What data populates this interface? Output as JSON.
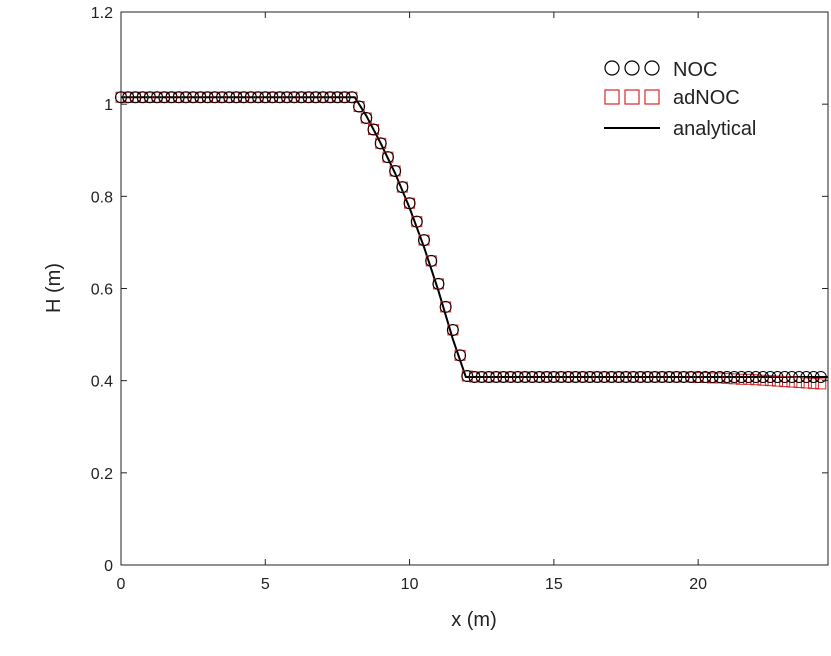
{
  "chart_data": {
    "type": "scatter",
    "xlabel": "x (m)",
    "ylabel": "H (m)",
    "xlim": [
      0,
      24.5
    ],
    "ylim": [
      0,
      1.2
    ],
    "xticks": [
      0,
      5,
      10,
      15,
      20
    ],
    "xtick_labels": [
      "0",
      "5",
      "10",
      "15",
      "20"
    ],
    "yticks": [
      0,
      0.2,
      0.4,
      0.6,
      0.8,
      1.0,
      1.2
    ],
    "ytick_labels": [
      "0",
      "0.2",
      "0.4",
      "0.6",
      "0.8",
      "1",
      "1.2"
    ],
    "grid": false,
    "legend_position": "top-right",
    "series": [
      {
        "name": "NOC",
        "marker": "circle",
        "color": "#000000",
        "x": [
          0,
          0.25,
          0.5,
          0.75,
          1,
          1.25,
          1.5,
          1.75,
          2,
          2.25,
          2.5,
          2.75,
          3,
          3.25,
          3.5,
          3.75,
          4,
          4.25,
          4.5,
          4.75,
          5,
          5.25,
          5.5,
          5.75,
          6,
          6.25,
          6.5,
          6.75,
          7,
          7.25,
          7.5,
          7.75,
          8,
          8.25,
          8.5,
          8.75,
          9,
          9.25,
          9.5,
          9.75,
          10,
          10.25,
          10.5,
          10.75,
          11,
          11.25,
          11.5,
          11.75,
          12,
          12.25,
          12.5,
          12.75,
          13,
          13.25,
          13.5,
          13.75,
          14,
          14.25,
          14.5,
          14.75,
          15,
          15.25,
          15.5,
          15.75,
          16,
          16.25,
          16.5,
          16.75,
          17,
          17.25,
          17.5,
          17.75,
          18,
          18.25,
          18.5,
          18.75,
          19,
          19.25,
          19.5,
          19.75,
          20,
          20.25,
          20.5,
          20.75,
          21,
          21.25,
          21.5,
          21.75,
          22,
          22.25,
          22.5,
          22.75,
          23,
          23.25,
          23.5,
          23.75,
          24,
          24.25
        ],
        "y": [
          1.015,
          1.015,
          1.015,
          1.015,
          1.015,
          1.015,
          1.015,
          1.015,
          1.015,
          1.015,
          1.015,
          1.015,
          1.015,
          1.015,
          1.015,
          1.015,
          1.015,
          1.015,
          1.015,
          1.015,
          1.015,
          1.015,
          1.015,
          1.015,
          1.015,
          1.015,
          1.015,
          1.015,
          1.015,
          1.015,
          1.015,
          1.015,
          1.015,
          0.995,
          0.97,
          0.945,
          0.915,
          0.885,
          0.855,
          0.82,
          0.785,
          0.745,
          0.705,
          0.66,
          0.61,
          0.56,
          0.51,
          0.455,
          0.41,
          0.408,
          0.408,
          0.408,
          0.408,
          0.408,
          0.408,
          0.408,
          0.408,
          0.408,
          0.408,
          0.408,
          0.408,
          0.408,
          0.408,
          0.408,
          0.408,
          0.408,
          0.408,
          0.408,
          0.408,
          0.408,
          0.408,
          0.408,
          0.408,
          0.408,
          0.408,
          0.408,
          0.408,
          0.408,
          0.408,
          0.408,
          0.408,
          0.408,
          0.408,
          0.408,
          0.408,
          0.408,
          0.408,
          0.408,
          0.408,
          0.408,
          0.408,
          0.408,
          0.408,
          0.408,
          0.408,
          0.408,
          0.408,
          0.408
        ]
      },
      {
        "name": "adNOC",
        "marker": "square",
        "color": "#d62728",
        "x": [
          0,
          0.25,
          0.5,
          0.75,
          1,
          1.25,
          1.5,
          1.75,
          2,
          2.25,
          2.5,
          2.75,
          3,
          3.25,
          3.5,
          3.75,
          4,
          4.25,
          4.5,
          4.75,
          5,
          5.25,
          5.5,
          5.75,
          6,
          6.25,
          6.5,
          6.75,
          7,
          7.25,
          7.5,
          7.75,
          8,
          8.25,
          8.5,
          8.75,
          9,
          9.25,
          9.5,
          9.75,
          10,
          10.25,
          10.5,
          10.75,
          11,
          11.25,
          11.5,
          11.75,
          12,
          12.25,
          12.5,
          12.75,
          13,
          13.25,
          13.5,
          13.75,
          14,
          14.25,
          14.5,
          14.75,
          15,
          15.25,
          15.5,
          15.75,
          16,
          16.25,
          16.5,
          16.75,
          17,
          17.25,
          17.5,
          17.75,
          18,
          18.25,
          18.5,
          18.75,
          19,
          19.25,
          19.5,
          19.75,
          20,
          20.25,
          20.5,
          20.75,
          21,
          21.25,
          21.5,
          21.75,
          22,
          22.25,
          22.5,
          22.75,
          23,
          23.25,
          23.5,
          23.75,
          24,
          24.25
        ],
        "y": [
          1.015,
          1.015,
          1.015,
          1.015,
          1.015,
          1.015,
          1.015,
          1.015,
          1.015,
          1.015,
          1.015,
          1.015,
          1.015,
          1.015,
          1.015,
          1.015,
          1.015,
          1.015,
          1.015,
          1.015,
          1.015,
          1.015,
          1.015,
          1.015,
          1.015,
          1.015,
          1.015,
          1.015,
          1.015,
          1.015,
          1.015,
          1.015,
          1.015,
          0.995,
          0.97,
          0.945,
          0.915,
          0.885,
          0.855,
          0.82,
          0.785,
          0.745,
          0.705,
          0.66,
          0.61,
          0.56,
          0.51,
          0.455,
          0.41,
          0.408,
          0.408,
          0.408,
          0.408,
          0.408,
          0.408,
          0.408,
          0.408,
          0.408,
          0.408,
          0.408,
          0.408,
          0.408,
          0.408,
          0.408,
          0.408,
          0.408,
          0.408,
          0.408,
          0.408,
          0.408,
          0.408,
          0.408,
          0.408,
          0.408,
          0.408,
          0.408,
          0.408,
          0.408,
          0.408,
          0.408,
          0.407,
          0.407,
          0.406,
          0.406,
          0.405,
          0.404,
          0.403,
          0.403,
          0.402,
          0.401,
          0.4,
          0.399,
          0.398,
          0.397,
          0.396,
          0.395,
          0.394,
          0.393
        ]
      },
      {
        "name": "analytical",
        "marker": "line",
        "color": "#000000",
        "x": [
          0,
          8.1,
          8.5,
          9,
          9.5,
          10,
          10.5,
          11,
          11.5,
          11.95,
          24.5
        ],
        "y": [
          1.015,
          1.015,
          0.975,
          0.915,
          0.85,
          0.775,
          0.69,
          0.595,
          0.49,
          0.408,
          0.408
        ]
      }
    ]
  }
}
